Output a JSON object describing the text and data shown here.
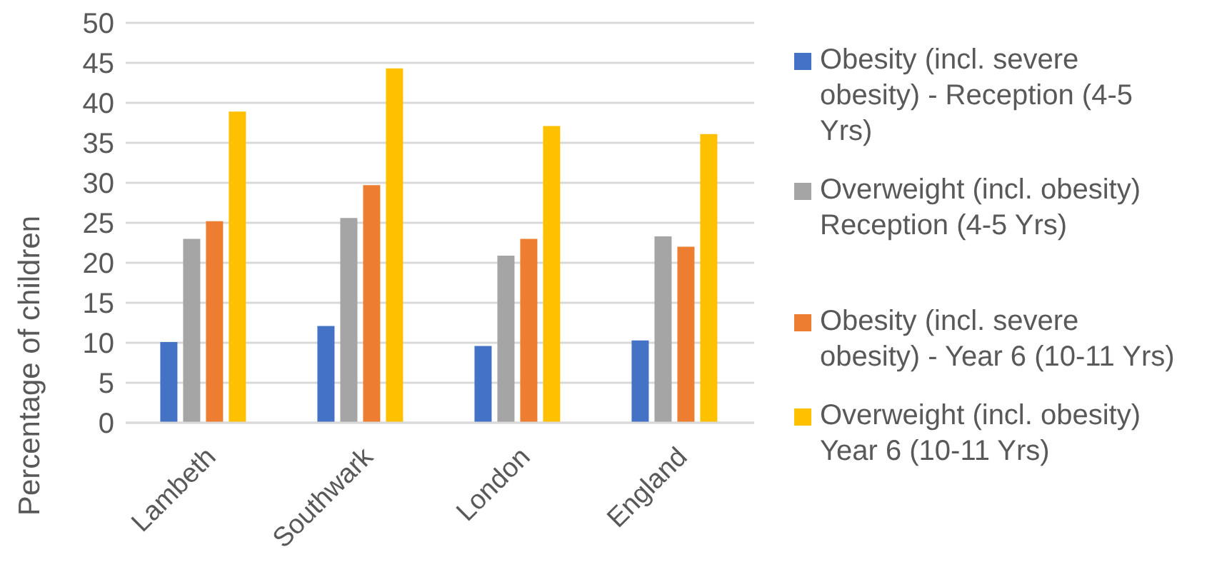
{
  "chart_data": {
    "type": "bar",
    "ylabel": "Percentage of children",
    "categories": [
      "Lambeth",
      "Southwark",
      "London",
      "England"
    ],
    "series": [
      {
        "name": "Obesity (incl. severe obesity) - Reception (4-5 Yrs)",
        "color": "#4472c4",
        "values": [
          10.1,
          12.1,
          9.6,
          10.3
        ]
      },
      {
        "name": "Overweight (incl. obesity) Reception (4-5 Yrs)",
        "color": "#a5a5a5",
        "values": [
          23.0,
          25.6,
          20.9,
          23.3
        ]
      },
      {
        "name": "Obesity (incl. severe obesity) - Year 6 (10-11 Yrs)",
        "color": "#ed7d31",
        "values": [
          25.2,
          29.7,
          23.0,
          22.0
        ]
      },
      {
        "name": "Overweight (incl. obesity) Year 6 (10-11 Yrs)",
        "color": "#ffc000",
        "values": [
          38.9,
          44.3,
          37.1,
          36.1
        ]
      }
    ],
    "ylim": [
      0,
      50
    ],
    "yticks": [
      0,
      5,
      10,
      15,
      20,
      25,
      30,
      35,
      40,
      45,
      50
    ],
    "grid": "y",
    "legend": "right"
  }
}
